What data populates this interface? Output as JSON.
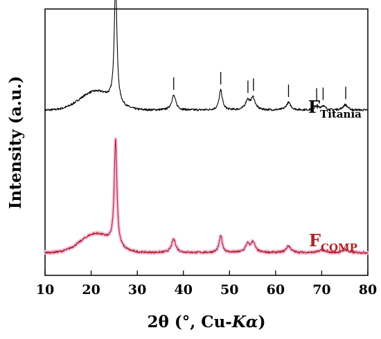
{
  "chart_data": {
    "type": "line",
    "title": "",
    "xlabel_parts": {
      "prefix": "2θ (°, Cu-",
      "italic": "Kα",
      "suffix": ")"
    },
    "ylabel": "Intensity (a.u.)",
    "xlim": [
      10,
      80
    ],
    "xticks": [
      10,
      20,
      30,
      40,
      50,
      60,
      70,
      80
    ],
    "y_scale": "arbitrary",
    "grid": false,
    "reference_markers_x": [
      25.3,
      37.9,
      48.1,
      54.0,
      55.2,
      62.8,
      68.9,
      70.3,
      75.2
    ],
    "series": [
      {
        "name": "Titania",
        "label_main": "F",
        "label_sub": "Titania",
        "color": "#000000",
        "baseline": 0.62,
        "noise": 0.004,
        "hump": {
          "center": 21,
          "height": 0.07,
          "width": 3.4
        },
        "peaks": [
          {
            "x": 25.3,
            "h": 0.46,
            "w": 0.34
          },
          {
            "x": 37.9,
            "h": 0.055,
            "w": 0.55
          },
          {
            "x": 48.1,
            "h": 0.075,
            "w": 0.42
          },
          {
            "x": 53.9,
            "h": 0.035,
            "w": 0.55
          },
          {
            "x": 55.1,
            "h": 0.045,
            "w": 0.55
          },
          {
            "x": 62.8,
            "h": 0.028,
            "w": 0.6
          },
          {
            "x": 68.9,
            "h": 0.012,
            "w": 0.6
          },
          {
            "x": 70.3,
            "h": 0.015,
            "w": 0.6
          },
          {
            "x": 75.1,
            "h": 0.02,
            "w": 0.6
          }
        ]
      },
      {
        "name": "COMP",
        "label_main": "F",
        "label_sub": "COMP",
        "color": "#b22222",
        "halo": "#f2c6e6",
        "baseline": 0.085,
        "noise": 0.004,
        "hump": {
          "center": 21,
          "height": 0.07,
          "width": 3.3
        },
        "peaks": [
          {
            "x": 25.3,
            "h": 0.4,
            "w": 0.34
          },
          {
            "x": 37.9,
            "h": 0.05,
            "w": 0.55
          },
          {
            "x": 48.1,
            "h": 0.062,
            "w": 0.42
          },
          {
            "x": 53.9,
            "h": 0.03,
            "w": 0.55
          },
          {
            "x": 55.1,
            "h": 0.038,
            "w": 0.55
          },
          {
            "x": 62.8,
            "h": 0.025,
            "w": 0.6
          },
          {
            "x": 70.0,
            "h": 0.01,
            "w": 0.7
          },
          {
            "x": 75.1,
            "h": 0.012,
            "w": 0.6
          }
        ]
      }
    ]
  }
}
